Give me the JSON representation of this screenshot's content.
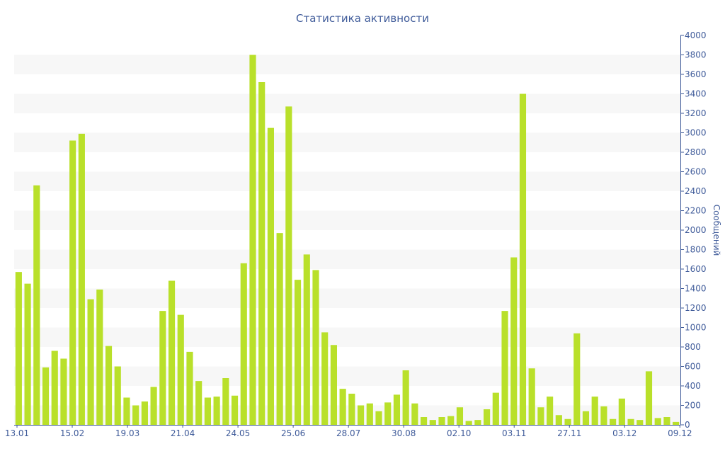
{
  "chart_data": {
    "type": "bar",
    "title": "Статистика активности",
    "xlabel": "",
    "ylabel": "Сообщений",
    "ylim": [
      0,
      4000
    ],
    "y_ticks": [
      0,
      200,
      400,
      600,
      800,
      1000,
      1200,
      1400,
      1600,
      1800,
      2000,
      2200,
      2400,
      2600,
      2800,
      3000,
      3200,
      3400,
      3600,
      3800,
      4000
    ],
    "y_axis_side": "right",
    "grid": "alternating horizontal bands",
    "x_tick_labels": [
      "13.01",
      "15.02",
      "19.03",
      "21.04",
      "24.05",
      "25.06",
      "28.07",
      "30.08",
      "02.10",
      "03.11",
      "27.11",
      "03.12",
      "09.12"
    ],
    "values": [
      1570,
      1450,
      2460,
      590,
      760,
      680,
      2920,
      2990,
      1290,
      1390,
      810,
      600,
      280,
      200,
      240,
      390,
      1170,
      1480,
      1130,
      750,
      450,
      280,
      290,
      480,
      300,
      1660,
      3800,
      3520,
      3050,
      1970,
      3270,
      1490,
      1750,
      1590,
      950,
      820,
      370,
      320,
      200,
      220,
      140,
      230,
      310,
      560,
      220,
      80,
      50,
      80,
      90,
      180,
      40,
      50,
      160,
      330,
      1170,
      1720,
      3400,
      580,
      180,
      290,
      100,
      60,
      940,
      140,
      290,
      190,
      60,
      270,
      60,
      50,
      550,
      70,
      80,
      30
    ],
    "colors": {
      "bar": "#b9e02a",
      "band": "#f7f7f7",
      "axis": "#3e5a99",
      "text": "#3e5a99"
    }
  }
}
